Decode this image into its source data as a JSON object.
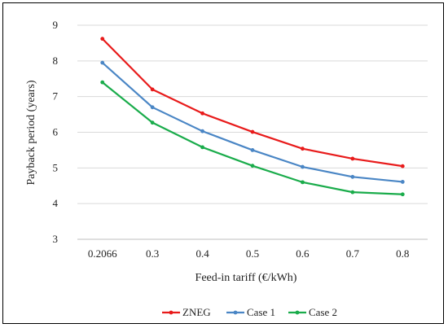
{
  "chart_data": {
    "type": "line",
    "xlabel": "Feed-in tariff (€/kWh)",
    "ylabel": "Payback period (years)",
    "categories": [
      "0.2066",
      "0.3",
      "0.4",
      "0.5",
      "0.6",
      "0.7",
      "0.8"
    ],
    "ylim": [
      3,
      9
    ],
    "yticks": [
      "3",
      "4",
      "5",
      "6",
      "7",
      "8",
      "9"
    ],
    "grid": true,
    "legend_position": "bottom",
    "series": [
      {
        "name": "ZNEG",
        "color": "#e81b1b",
        "values": [
          8.62,
          7.2,
          6.53,
          6.01,
          5.54,
          5.26,
          5.05
        ]
      },
      {
        "name": "Case 1",
        "color": "#4a86c5",
        "values": [
          7.95,
          6.7,
          6.03,
          5.5,
          5.03,
          4.75,
          4.61
        ]
      },
      {
        "name": "Case 2",
        "color": "#1aac4b",
        "values": [
          7.4,
          6.27,
          5.58,
          5.06,
          4.6,
          4.32,
          4.26
        ]
      }
    ]
  }
}
